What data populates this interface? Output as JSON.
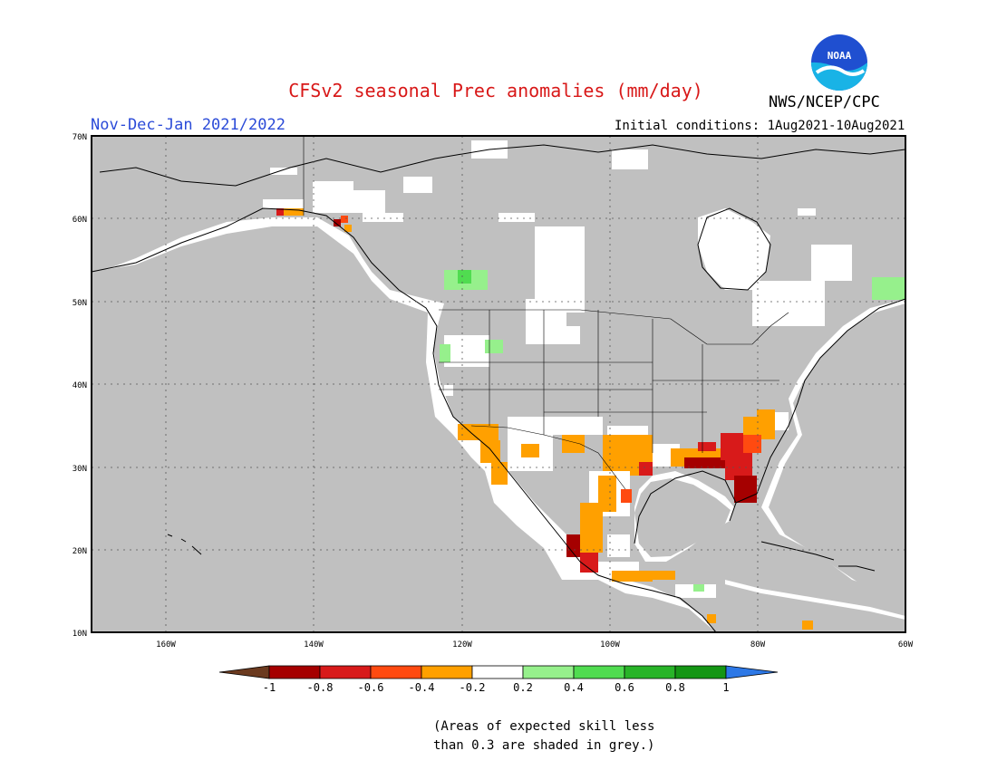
{
  "header": {
    "title": "CFSv2 seasonal Prec anomalies (mm/day)",
    "period": "Nov-Dec-Jan 2021/2022",
    "agency": "NWS/NCEP/CPC",
    "initial_conditions": "Initial conditions: 1Aug2021-10Aug2021",
    "logo_text": "NOAA"
  },
  "map": {
    "lon_labels": [
      "160W",
      "140W",
      "120W",
      "100W",
      "80W",
      "60W"
    ],
    "lat_labels": [
      "70N",
      "60N",
      "50N",
      "40N",
      "30N",
      "20N",
      "10N"
    ]
  },
  "legend": {
    "tick_labels": [
      "-1",
      "-0.8",
      "-0.6",
      "-0.4",
      "-0.2",
      "0.2",
      "0.4",
      "0.6",
      "0.8",
      "1"
    ],
    "colors": {
      "below_min": "#6b3a1f",
      "-1 to -0.8": "#a50000",
      "-0.8 to -0.6": "#d81a1a",
      "-0.6 to -0.4": "#ff4a10",
      "-0.4 to -0.2": "#ffa000",
      "-0.2 to 0.2": "#ffffff",
      "0.2 to 0.4": "#96f08c",
      "0.4 to 0.6": "#50dc50",
      "0.6 to 0.8": "#28b428",
      "0.8 to 1": "#149614",
      "above_max": "#2d78e6"
    }
  },
  "note": {
    "line1": "(Areas of expected skill less",
    "line2": "than 0.3 are shaded in grey.)"
  }
}
